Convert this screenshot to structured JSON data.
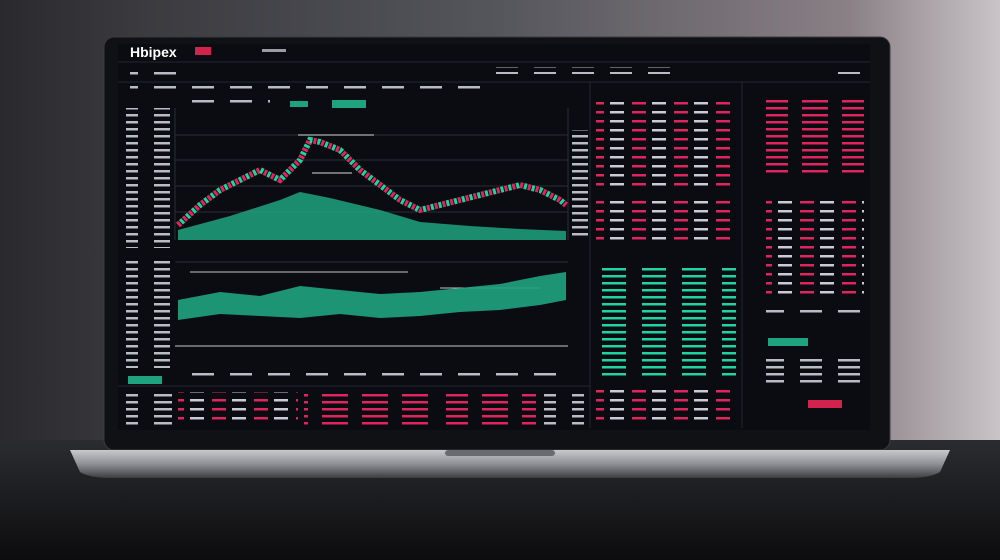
{
  "header": {
    "logo": "Hbipex"
  }
}
